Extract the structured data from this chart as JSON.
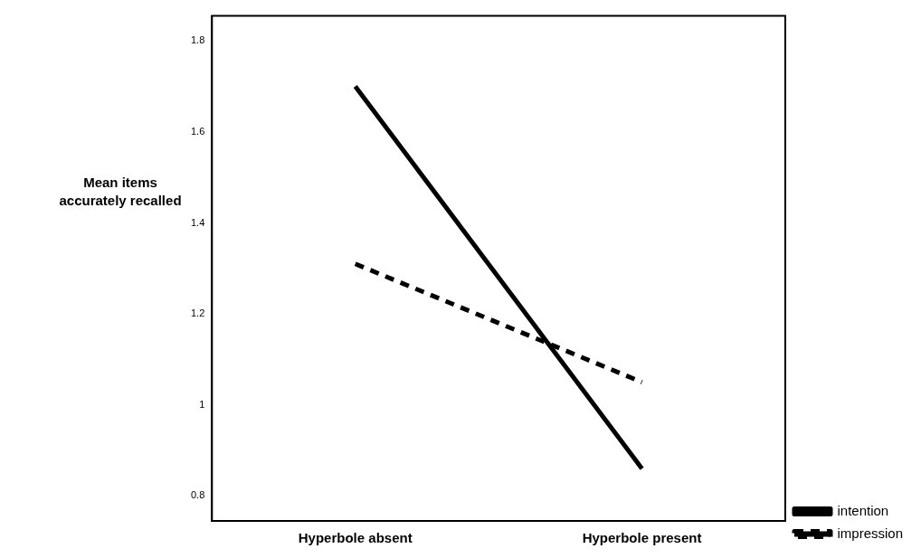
{
  "chart_data": {
    "type": "line",
    "ylabel": "Mean items accurately recalled",
    "categories": [
      "Hyperbole absent",
      "Hyperbole present"
    ],
    "series": [
      {
        "name": "intention",
        "color": "#000000",
        "values": [
          1.7,
          0.86
        ],
        "line_style": "solid"
      },
      {
        "name": "impression",
        "color": "#000000",
        "values": [
          1.31,
          1.05
        ],
        "line_style": "dashed"
      }
    ],
    "ylim": [
      0.745,
      1.855
    ],
    "yticks": [
      0.8,
      1,
      1.2,
      1.4,
      1.6,
      1.8
    ],
    "grid": false,
    "legend": "bottom right"
  }
}
